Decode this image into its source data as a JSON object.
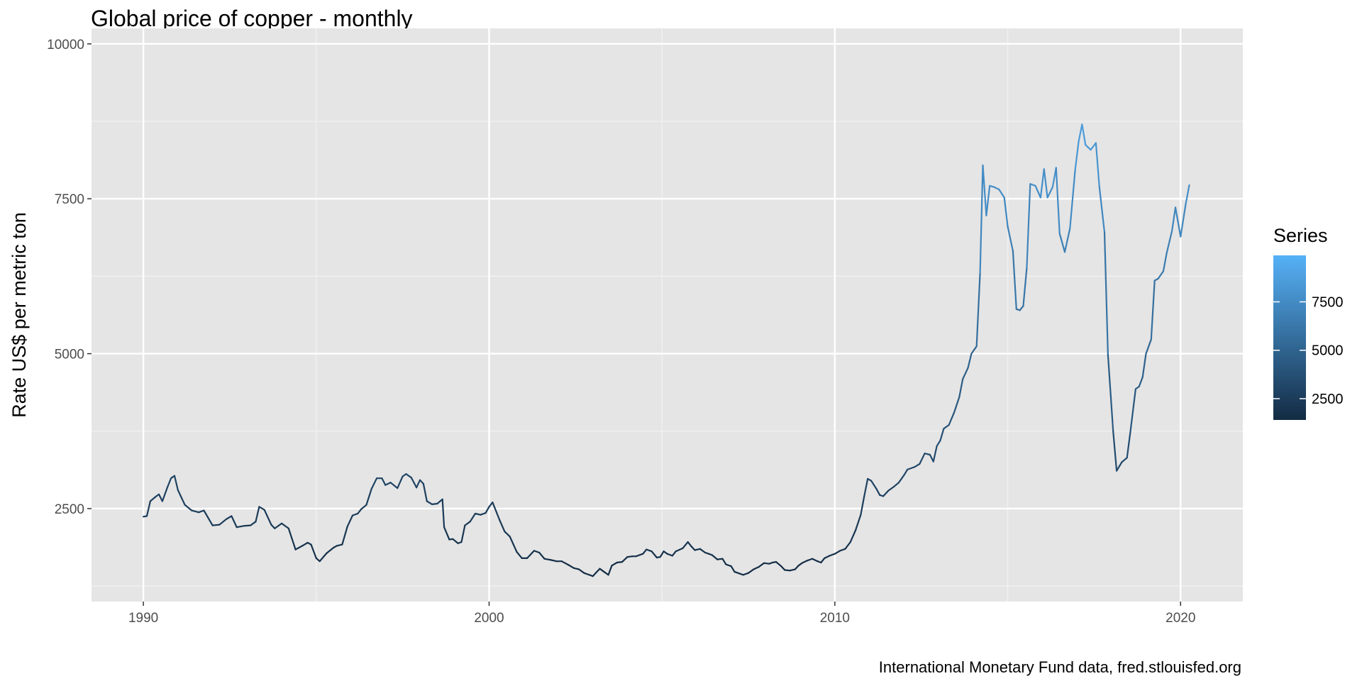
{
  "chart_data": {
    "type": "line",
    "title": "Global price of copper - monthly",
    "ylabel": "Rate US$ per metric ton",
    "xlabel": "",
    "caption": "International Monetary Fund data, fred.stlouisfed.org",
    "x_ticks": [
      1990,
      2000,
      2010,
      2020
    ],
    "y_ticks": [
      2500,
      5000,
      7500,
      10000
    ],
    "xlim": [
      1988.5,
      2021.8
    ],
    "ylim": [
      1000,
      10250
    ],
    "grid": true,
    "legend": {
      "title": "Series",
      "position": "right",
      "type": "colorbar",
      "ticks": [
        2500,
        5000,
        7500
      ],
      "range": [
        1400,
        9900
      ],
      "color_low": "#132B43",
      "color_high": "#56B1F7"
    },
    "series": [
      {
        "points": [
          [
            1990.0,
            2370
          ],
          [
            1990.1,
            2380
          ],
          [
            1990.2,
            2620
          ],
          [
            1990.35,
            2690
          ],
          [
            1990.45,
            2730
          ],
          [
            1990.55,
            2620
          ],
          [
            1990.7,
            2850
          ],
          [
            1990.8,
            2990
          ],
          [
            1990.9,
            3030
          ],
          [
            1991.0,
            2800
          ],
          [
            1991.2,
            2560
          ],
          [
            1991.4,
            2470
          ],
          [
            1991.6,
            2440
          ],
          [
            1991.75,
            2470
          ],
          [
            1992.0,
            2230
          ],
          [
            1992.2,
            2240
          ],
          [
            1992.4,
            2330
          ],
          [
            1992.55,
            2380
          ],
          [
            1992.7,
            2200
          ],
          [
            1992.9,
            2220
          ],
          [
            1993.1,
            2230
          ],
          [
            1993.25,
            2290
          ],
          [
            1993.35,
            2530
          ],
          [
            1993.5,
            2480
          ],
          [
            1993.7,
            2240
          ],
          [
            1993.8,
            2180
          ],
          [
            1994.0,
            2260
          ],
          [
            1994.2,
            2180
          ],
          [
            1994.4,
            1840
          ],
          [
            1994.6,
            1900
          ],
          [
            1994.75,
            1950
          ],
          [
            1994.85,
            1920
          ],
          [
            1995.0,
            1700
          ],
          [
            1995.1,
            1650
          ],
          [
            1995.3,
            1780
          ],
          [
            1995.5,
            1870
          ],
          [
            1995.6,
            1900
          ],
          [
            1995.75,
            1920
          ],
          [
            1995.9,
            2210
          ],
          [
            1996.05,
            2390
          ],
          [
            1996.2,
            2420
          ],
          [
            1996.3,
            2490
          ],
          [
            1996.45,
            2560
          ],
          [
            1996.6,
            2820
          ],
          [
            1996.75,
            2990
          ],
          [
            1996.9,
            2990
          ],
          [
            1997.0,
            2880
          ],
          [
            1997.15,
            2920
          ],
          [
            1997.35,
            2830
          ],
          [
            1997.5,
            3020
          ],
          [
            1997.6,
            3060
          ],
          [
            1997.75,
            3000
          ],
          [
            1997.9,
            2840
          ],
          [
            1998.0,
            2960
          ],
          [
            1998.1,
            2900
          ],
          [
            1998.2,
            2620
          ],
          [
            1998.35,
            2570
          ],
          [
            1998.5,
            2580
          ],
          [
            1998.65,
            2650
          ],
          [
            1998.7,
            2200
          ],
          [
            1998.85,
            2000
          ],
          [
            1998.95,
            2010
          ],
          [
            1999.1,
            1940
          ],
          [
            1999.2,
            1960
          ],
          [
            1999.3,
            2230
          ],
          [
            1999.45,
            2290
          ],
          [
            1999.6,
            2420
          ],
          [
            1999.75,
            2400
          ],
          [
            1999.9,
            2430
          ],
          [
            2000.0,
            2530
          ],
          [
            2000.1,
            2600
          ],
          [
            2000.3,
            2320
          ],
          [
            2000.45,
            2130
          ],
          [
            2000.6,
            2050
          ],
          [
            2000.8,
            1800
          ],
          [
            2000.95,
            1700
          ],
          [
            2001.1,
            1700
          ],
          [
            2001.3,
            1820
          ],
          [
            2001.45,
            1790
          ],
          [
            2001.6,
            1690
          ],
          [
            2001.8,
            1670
          ],
          [
            2001.95,
            1650
          ],
          [
            2002.1,
            1650
          ],
          [
            2002.3,
            1590
          ],
          [
            2002.45,
            1540
          ],
          [
            2002.6,
            1520
          ],
          [
            2002.75,
            1460
          ],
          [
            2002.9,
            1430
          ],
          [
            2003.0,
            1410
          ],
          [
            2003.1,
            1470
          ],
          [
            2003.2,
            1530
          ],
          [
            2003.3,
            1490
          ],
          [
            2003.45,
            1430
          ],
          [
            2003.55,
            1580
          ],
          [
            2003.7,
            1630
          ],
          [
            2003.85,
            1640
          ],
          [
            2004.0,
            1720
          ],
          [
            2004.15,
            1730
          ],
          [
            2004.25,
            1730
          ],
          [
            2004.45,
            1770
          ],
          [
            2004.55,
            1840
          ],
          [
            2004.7,
            1810
          ],
          [
            2004.85,
            1710
          ],
          [
            2004.95,
            1720
          ],
          [
            2005.05,
            1810
          ],
          [
            2005.15,
            1770
          ],
          [
            2005.3,
            1740
          ],
          [
            2005.4,
            1810
          ],
          [
            2005.6,
            1860
          ],
          [
            2005.75,
            1960
          ],
          [
            2005.85,
            1890
          ],
          [
            2005.95,
            1830
          ],
          [
            2006.1,
            1850
          ],
          [
            2006.25,
            1790
          ],
          [
            2006.35,
            1770
          ],
          [
            2006.45,
            1750
          ],
          [
            2006.6,
            1680
          ],
          [
            2006.75,
            1690
          ],
          [
            2006.85,
            1600
          ],
          [
            2007.0,
            1570
          ],
          [
            2007.1,
            1480
          ],
          [
            2007.25,
            1450
          ],
          [
            2007.35,
            1430
          ],
          [
            2007.5,
            1460
          ],
          [
            2007.65,
            1520
          ],
          [
            2007.8,
            1560
          ],
          [
            2007.95,
            1620
          ],
          [
            2008.1,
            1610
          ],
          [
            2008.2,
            1630
          ],
          [
            2008.3,
            1640
          ],
          [
            2008.45,
            1570
          ],
          [
            2008.55,
            1510
          ],
          [
            2008.7,
            1500
          ],
          [
            2008.85,
            1520
          ],
          [
            2008.95,
            1580
          ],
          [
            2009.05,
            1620
          ],
          [
            2009.2,
            1660
          ],
          [
            2009.35,
            1690
          ],
          [
            2009.5,
            1650
          ],
          [
            2009.6,
            1630
          ],
          [
            2009.7,
            1700
          ],
          [
            2009.85,
            1740
          ],
          [
            2010.0,
            1770
          ],
          [
            2010.15,
            1820
          ],
          [
            2010.3,
            1850
          ],
          [
            2010.45,
            1960
          ],
          [
            2010.6,
            2150
          ],
          [
            2010.75,
            2400
          ],
          [
            2010.85,
            2700
          ],
          [
            2010.95,
            2980
          ],
          [
            2011.05,
            2950
          ],
          [
            2011.2,
            2820
          ],
          [
            2011.3,
            2720
          ],
          [
            2011.4,
            2700
          ],
          [
            2011.55,
            2790
          ],
          [
            2011.7,
            2850
          ],
          [
            2011.85,
            2920
          ],
          [
            2012.0,
            3040
          ],
          [
            2012.1,
            3130
          ],
          [
            2012.3,
            3170
          ],
          [
            2012.45,
            3220
          ],
          [
            2012.6,
            3390
          ],
          [
            2012.75,
            3370
          ],
          [
            2012.85,
            3260
          ],
          [
            2012.95,
            3510
          ],
          [
            2013.05,
            3600
          ],
          [
            2013.15,
            3790
          ],
          [
            2013.3,
            3850
          ],
          [
            2013.45,
            4050
          ],
          [
            2013.6,
            4300
          ],
          [
            2013.7,
            4590
          ],
          [
            2013.85,
            4770
          ],
          [
            2013.95,
            5000
          ],
          [
            2014.1,
            5120
          ],
          [
            2014.2,
            6300
          ],
          [
            2014.28,
            8040
          ],
          [
            2014.38,
            7230
          ],
          [
            2014.48,
            7710
          ],
          [
            2014.6,
            7690
          ],
          [
            2014.75,
            7650
          ],
          [
            2014.9,
            7520
          ],
          [
            2015.0,
            7050
          ],
          [
            2015.15,
            6660
          ],
          [
            2015.25,
            5720
          ],
          [
            2015.35,
            5700
          ],
          [
            2015.45,
            5770
          ],
          [
            2015.55,
            6380
          ],
          [
            2015.65,
            7740
          ],
          [
            2015.8,
            7710
          ],
          [
            2015.95,
            7520
          ],
          [
            2016.05,
            7980
          ],
          [
            2016.15,
            7520
          ],
          [
            2016.3,
            7690
          ],
          [
            2016.4,
            8000
          ],
          [
            2016.5,
            6940
          ],
          [
            2016.65,
            6640
          ],
          [
            2016.8,
            7020
          ],
          [
            2016.95,
            7960
          ],
          [
            2017.05,
            8420
          ],
          [
            2017.15,
            8700
          ],
          [
            2017.25,
            8370
          ],
          [
            2017.4,
            8290
          ],
          [
            2017.55,
            8400
          ],
          [
            2017.65,
            7700
          ],
          [
            2017.8,
            6960
          ],
          [
            2017.9,
            4980
          ],
          [
            2018.05,
            3750
          ],
          [
            2018.15,
            3110
          ],
          [
            2018.3,
            3250
          ],
          [
            2018.45,
            3320
          ],
          [
            2018.55,
            3750
          ],
          [
            2018.7,
            4430
          ],
          [
            2018.8,
            4470
          ],
          [
            2018.9,
            4620
          ],
          [
            2019.0,
            5000
          ],
          [
            2019.15,
            5230
          ],
          [
            2019.25,
            6180
          ],
          [
            2019.35,
            6210
          ],
          [
            2019.5,
            6330
          ],
          [
            2019.6,
            6630
          ],
          [
            2019.75,
            6980
          ],
          [
            2019.85,
            7360
          ],
          [
            2020.0,
            6890
          ],
          [
            2020.15,
            7420
          ],
          [
            2020.25,
            7720
          ]
        ]
      }
    ]
  }
}
